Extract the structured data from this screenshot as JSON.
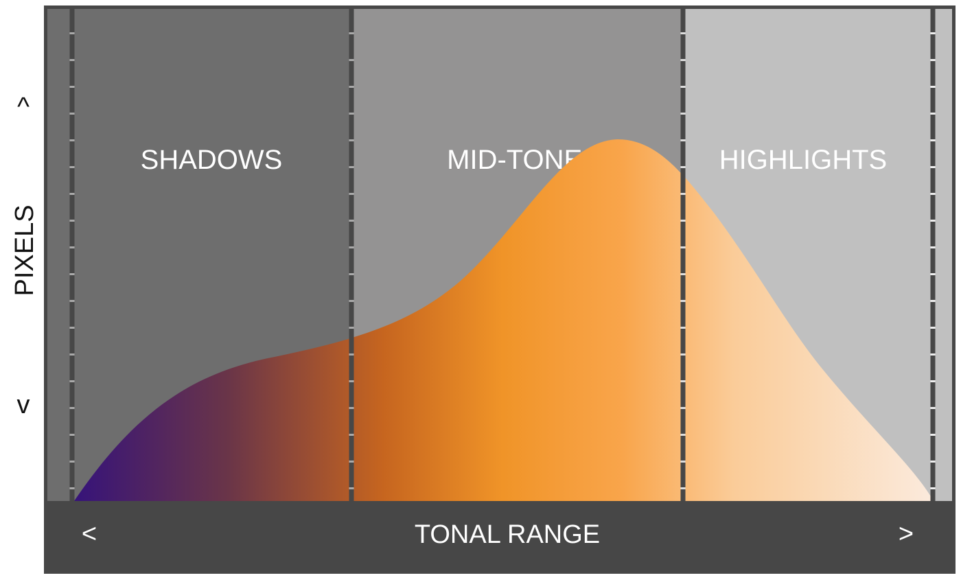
{
  "zones": [
    {
      "label": "SHADOWS",
      "fill": "#6e6e6e"
    },
    {
      "label": "MID-TONES",
      "fill": "#949393"
    },
    {
      "label": "HIGHLIGHTS",
      "fill": "#c0c0c0"
    }
  ],
  "x_axis": {
    "label": "TONAL RANGE",
    "left_arrow": "<",
    "right_arrow": ">",
    "band_color": "#474747"
  },
  "y_axis": {
    "label": "PIXELS",
    "up_arrow": "^",
    "down_arrow": "v"
  },
  "colors": {
    "frame": "#474747",
    "outer_band": "#6e6e6e",
    "gradient": [
      "#36137a",
      "#6a3548",
      "#c6651f",
      "#f09428",
      "#f9a54b",
      "#facc99",
      "#fbeadc"
    ]
  }
}
